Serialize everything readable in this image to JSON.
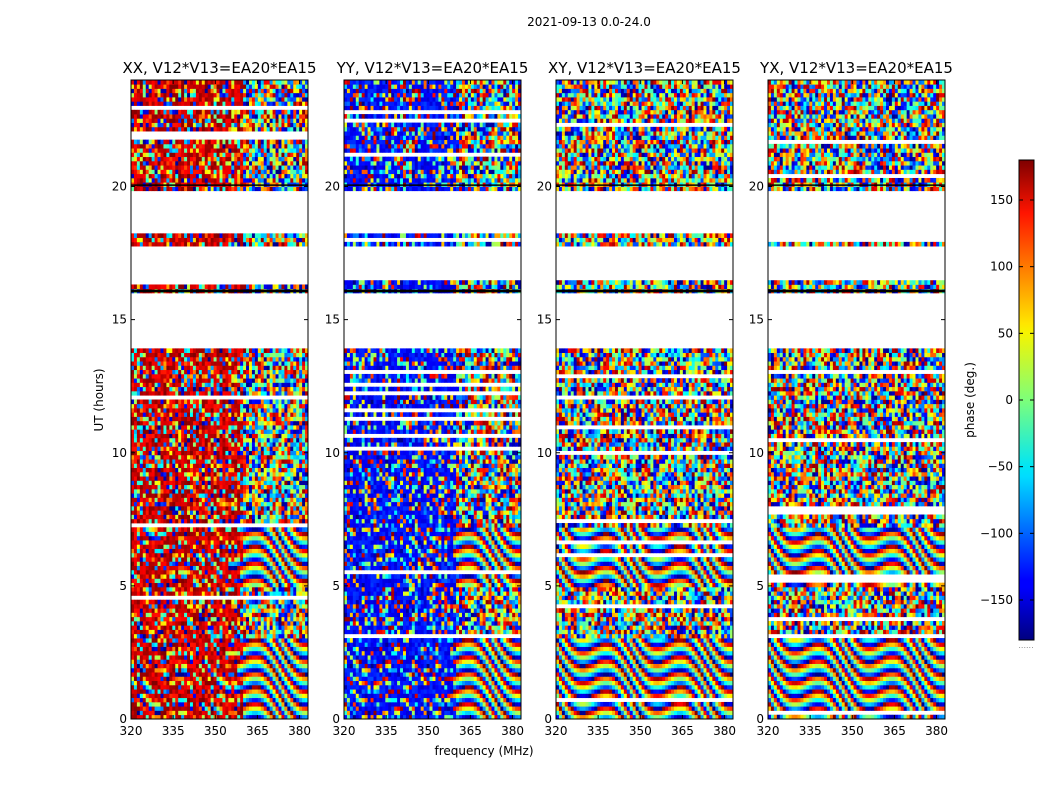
{
  "figure": {
    "suptitle": "2021-09-13 0.0-24.0"
  },
  "chart_data": {
    "type": "heatmap",
    "title": "2021-09-13 0.0-24.0",
    "xlabel": "frequency (MHz)",
    "ylabel": "UT (hours)",
    "xlim": [
      320,
      383
    ],
    "ylim": [
      0,
      24
    ],
    "x_ticks": [
      "320",
      "335",
      "350",
      "365",
      "380"
    ],
    "y_ticks": [
      "0",
      "5",
      "10",
      "15",
      "20"
    ],
    "panels": [
      {
        "title": "XX, V12*V13=EA20*EA15",
        "dominant_phase": "red"
      },
      {
        "title": "YY, V12*V13=EA20*EA15",
        "dominant_phase": "blue"
      },
      {
        "title": "XY, V12*V13=EA20*EA15",
        "dominant_phase": "mixed"
      },
      {
        "title": "YX, V12*V13=EA20*EA15",
        "dominant_phase": "mixed"
      }
    ],
    "flagged_time_ranges_hours": [
      [
        16.5,
        17.8
      ],
      [
        18.3,
        19.9
      ],
      [
        14.0,
        16.0
      ]
    ],
    "colorbar": {
      "label": "phase (deg.)",
      "range": [
        -180,
        180
      ],
      "ticks": [
        "150",
        "100",
        "50",
        "0",
        "−50",
        "−100",
        "−150"
      ],
      "bottom_text": "......"
    }
  }
}
